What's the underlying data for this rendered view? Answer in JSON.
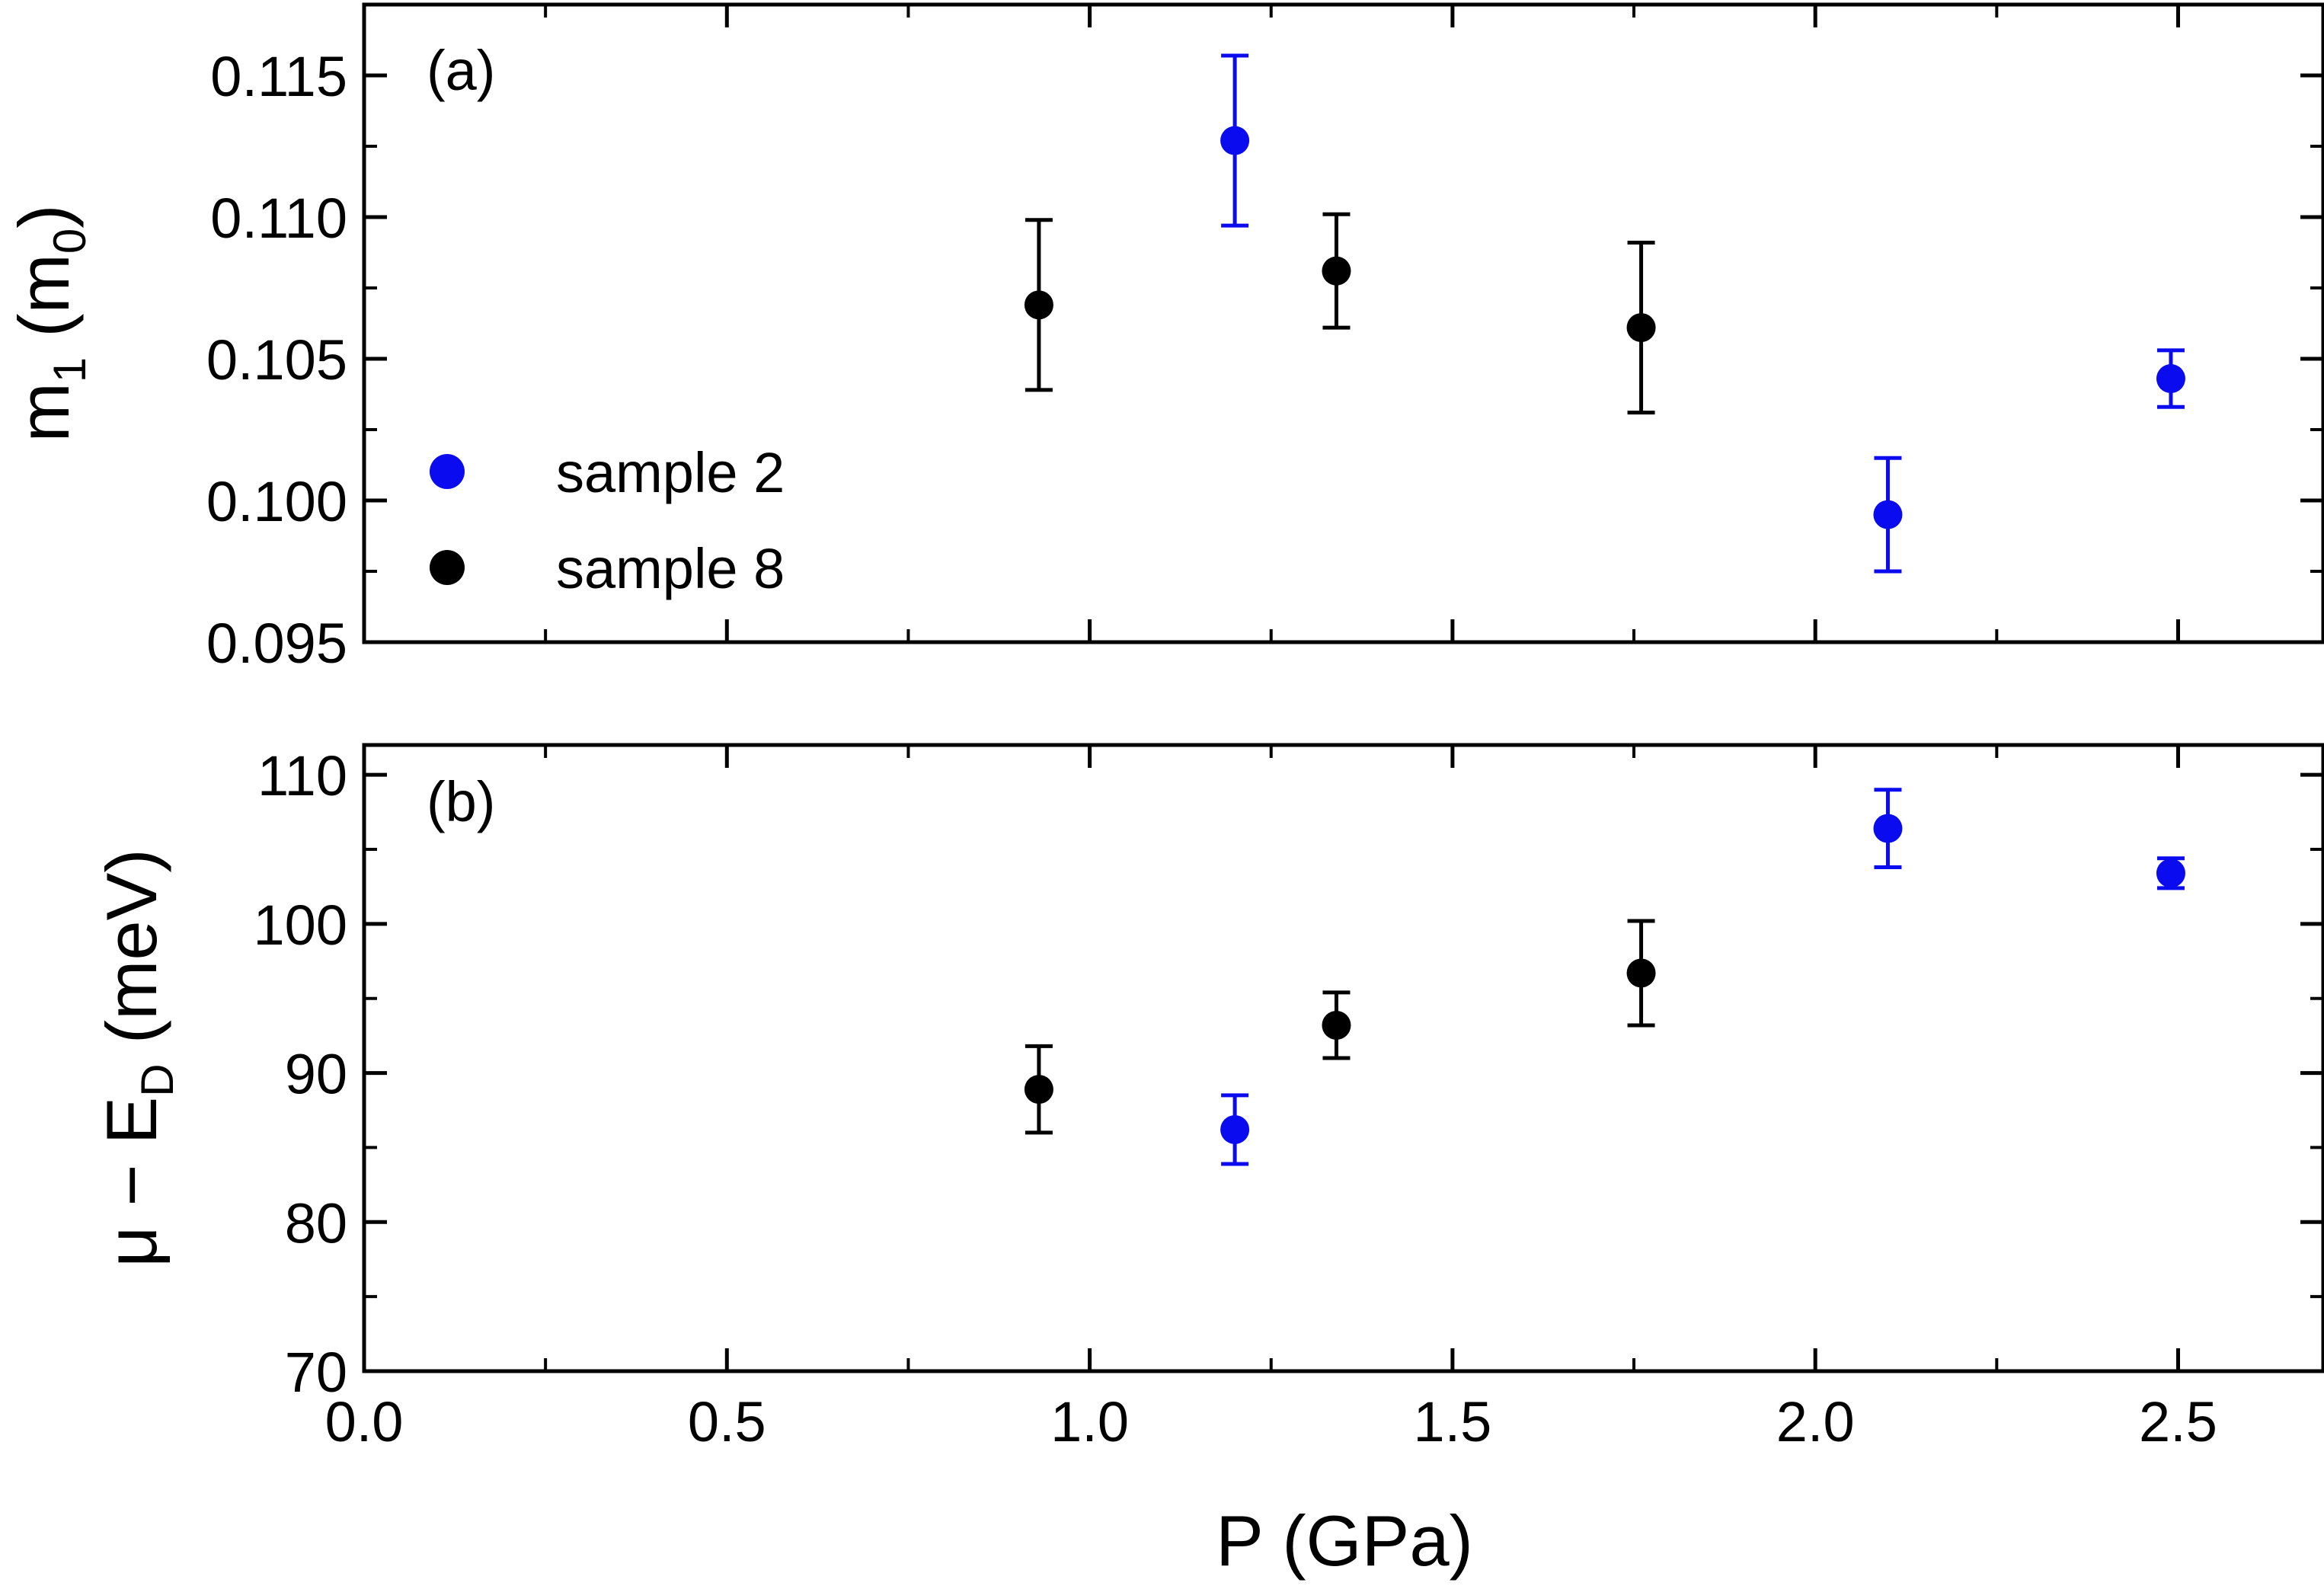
{
  "chart_data": [
    {
      "type": "scatter",
      "panel_label": "(a)",
      "ylabel": {
        "main": "m",
        "sub1": "1",
        "middle": " (m",
        "sub2": "0",
        "end": ")"
      },
      "xlim": [
        0,
        2.7
      ],
      "ylim": [
        0.095,
        0.1175
      ],
      "yticks": [
        0.095,
        0.1,
        0.105,
        0.11,
        0.115
      ],
      "ytick_labels": [
        "0.095",
        "0.100",
        "0.105",
        "0.110",
        "0.115"
      ],
      "series": [
        {
          "name": "sample 2",
          "color": "#0b0bf0",
          "points": [
            {
              "x": 1.2,
              "y": 0.1127,
              "err": 0.003
            },
            {
              "x": 2.1,
              "y": 0.0995,
              "err": 0.002
            },
            {
              "x": 2.49,
              "y": 0.1043,
              "err": 0.001
            }
          ]
        },
        {
          "name": "sample 8",
          "color": "#000000",
          "points": [
            {
              "x": 0.93,
              "y": 0.1069,
              "err": 0.003
            },
            {
              "x": 1.34,
              "y": 0.1081,
              "err": 0.002
            },
            {
              "x": 1.76,
              "y": 0.1061,
              "err": 0.003
            }
          ]
        }
      ],
      "legend": [
        "sample 2",
        "sample 8"
      ]
    },
    {
      "type": "scatter",
      "panel_label": "(b)",
      "ylabel": {
        "main": "μ − E",
        "sub": "D",
        "end": " (meV)"
      },
      "xlabel": "P (GPa)",
      "xlim": [
        0,
        2.7
      ],
      "ylim": [
        70,
        112
      ],
      "xticks": [
        0.0,
        0.5,
        1.0,
        1.5,
        2.0,
        2.5
      ],
      "xtick_labels": [
        "0.0",
        "0.5",
        "1.0",
        "1.5",
        "2.0",
        "2.5"
      ],
      "yticks": [
        70,
        80,
        90,
        100,
        110
      ],
      "ytick_labels": [
        "70",
        "80",
        "90",
        "100",
        "110"
      ],
      "series": [
        {
          "name": "sample 2",
          "color": "#0b0bf0",
          "points": [
            {
              "x": 1.2,
              "y": 86.2,
              "err": 2.3
            },
            {
              "x": 2.1,
              "y": 106.4,
              "err": 2.6
            },
            {
              "x": 2.49,
              "y": 103.4,
              "err": 1.0
            }
          ]
        },
        {
          "name": "sample 8",
          "color": "#000000",
          "points": [
            {
              "x": 0.93,
              "y": 88.9,
              "err": 2.9
            },
            {
              "x": 1.34,
              "y": 93.2,
              "err": 2.2
            },
            {
              "x": 1.76,
              "y": 96.7,
              "err": 3.5
            }
          ]
        }
      ]
    }
  ]
}
